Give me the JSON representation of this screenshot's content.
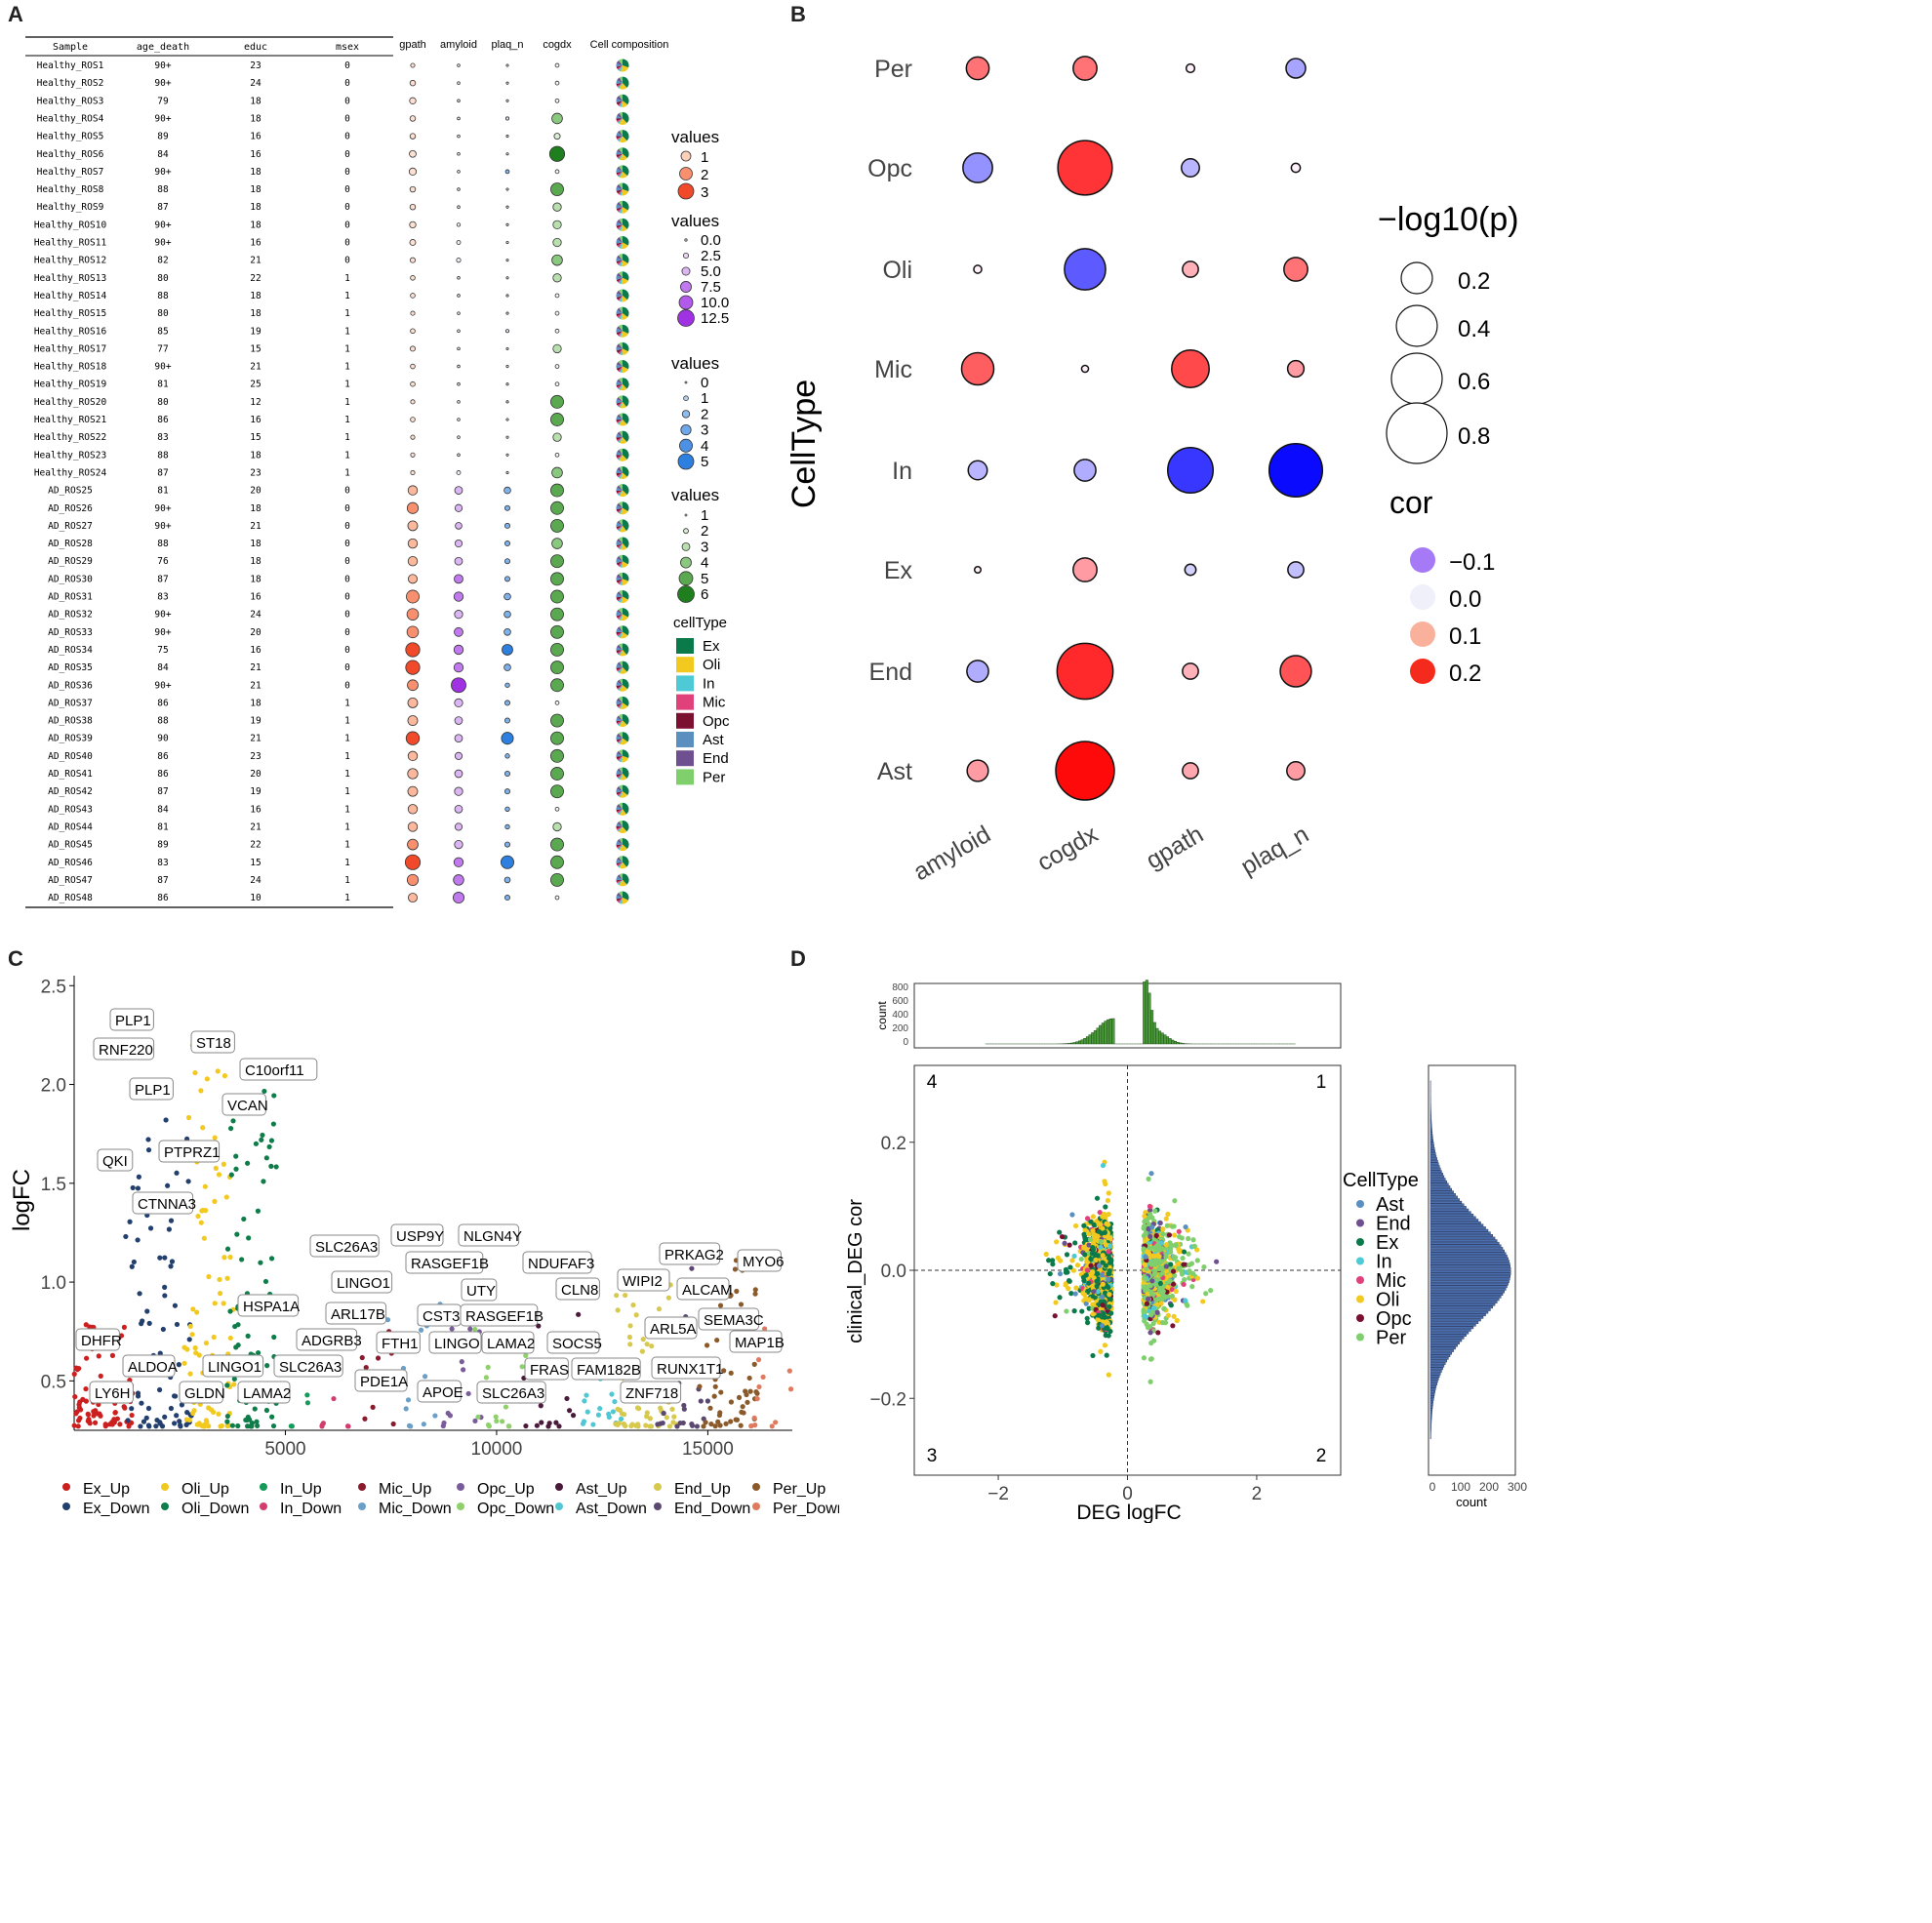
{
  "panels": {
    "A": "A",
    "B": "B",
    "C": "C",
    "D": "D"
  },
  "panelA": {
    "headers": [
      "Sample",
      "age_death",
      "educ",
      "msex"
    ],
    "bubble_headers": [
      "gpath",
      "amyloid",
      "plaq_n",
      "cogdx",
      "Cell composition"
    ],
    "rows": [
      [
        "Healthy_ROS1",
        "90+",
        "23",
        "0"
      ],
      [
        "Healthy_ROS2",
        "90+",
        "24",
        "0"
      ],
      [
        "Healthy_ROS3",
        "79",
        "18",
        "0"
      ],
      [
        "Healthy_ROS4",
        "90+",
        "18",
        "0"
      ],
      [
        "Healthy_ROS5",
        "89",
        "16",
        "0"
      ],
      [
        "Healthy_ROS6",
        "84",
        "16",
        "0"
      ],
      [
        "Healthy_ROS7",
        "90+",
        "18",
        "0"
      ],
      [
        "Healthy_ROS8",
        "88",
        "18",
        "0"
      ],
      [
        "Healthy_ROS9",
        "87",
        "18",
        "0"
      ],
      [
        "Healthy_ROS10",
        "90+",
        "18",
        "0"
      ],
      [
        "Healthy_ROS11",
        "90+",
        "16",
        "0"
      ],
      [
        "Healthy_ROS12",
        "82",
        "21",
        "0"
      ],
      [
        "Healthy_ROS13",
        "80",
        "22",
        "1"
      ],
      [
        "Healthy_ROS14",
        "88",
        "18",
        "1"
      ],
      [
        "Healthy_ROS15",
        "80",
        "18",
        "1"
      ],
      [
        "Healthy_ROS16",
        "85",
        "19",
        "1"
      ],
      [
        "Healthy_ROS17",
        "77",
        "15",
        "1"
      ],
      [
        "Healthy_ROS18",
        "90+",
        "21",
        "1"
      ],
      [
        "Healthy_ROS19",
        "81",
        "25",
        "1"
      ],
      [
        "Healthy_ROS20",
        "80",
        "12",
        "1"
      ],
      [
        "Healthy_ROS21",
        "86",
        "16",
        "1"
      ],
      [
        "Healthy_ROS22",
        "83",
        "15",
        "1"
      ],
      [
        "Healthy_ROS23",
        "88",
        "18",
        "1"
      ],
      [
        "Healthy_ROS24",
        "87",
        "23",
        "1"
      ],
      [
        "AD_ROS25",
        "81",
        "20",
        "0"
      ],
      [
        "AD_ROS26",
        "90+",
        "18",
        "0"
      ],
      [
        "AD_ROS27",
        "90+",
        "21",
        "0"
      ],
      [
        "AD_ROS28",
        "88",
        "18",
        "0"
      ],
      [
        "AD_ROS29",
        "76",
        "18",
        "0"
      ],
      [
        "AD_ROS30",
        "87",
        "18",
        "0"
      ],
      [
        "AD_ROS31",
        "83",
        "16",
        "0"
      ],
      [
        "AD_ROS32",
        "90+",
        "24",
        "0"
      ],
      [
        "AD_ROS33",
        "90+",
        "20",
        "0"
      ],
      [
        "AD_ROS34",
        "75",
        "16",
        "0"
      ],
      [
        "AD_ROS35",
        "84",
        "21",
        "0"
      ],
      [
        "AD_ROS36",
        "90+",
        "21",
        "0"
      ],
      [
        "AD_ROS37",
        "86",
        "18",
        "1"
      ],
      [
        "AD_ROS38",
        "88",
        "19",
        "1"
      ],
      [
        "AD_ROS39",
        "90",
        "21",
        "1"
      ],
      [
        "AD_ROS40",
        "86",
        "23",
        "1"
      ],
      [
        "AD_ROS41",
        "86",
        "20",
        "1"
      ],
      [
        "AD_ROS42",
        "87",
        "19",
        "1"
      ],
      [
        "AD_ROS43",
        "84",
        "16",
        "1"
      ],
      [
        "AD_ROS44",
        "81",
        "21",
        "1"
      ],
      [
        "AD_ROS45",
        "89",
        "22",
        "1"
      ],
      [
        "AD_ROS46",
        "83",
        "15",
        "1"
      ],
      [
        "AD_ROS47",
        "87",
        "24",
        "1"
      ],
      [
        "AD_ROS48",
        "86",
        "10",
        "1"
      ]
    ],
    "gpath": [
      0.3,
      0.6,
      0.8,
      0.6,
      0.6,
      0.9,
      1.0,
      0.6,
      0.6,
      0.8,
      0.7,
      0.5,
      0.4,
      0.4,
      0.3,
      0.4,
      0.5,
      0.4,
      0.4,
      0.3,
      0.4,
      0.3,
      0.3,
      0.3,
      1.5,
      1.9,
      1.6,
      1.5,
      1.5,
      1.4,
      2.3,
      2.0,
      2.0,
      2.6,
      2.6,
      1.8,
      1.6,
      1.6,
      2.4,
      1.5,
      1.7,
      1.6,
      1.5,
      1.5,
      1.8,
      2.8,
      1.9,
      1.4
    ],
    "amyloid": [
      0.3,
      0.3,
      0.3,
      0.3,
      0.3,
      0.3,
      0.3,
      0.3,
      0.3,
      1.0,
      1.5,
      1.8,
      0.3,
      0.3,
      0.3,
      0.3,
      0.3,
      0.3,
      0.3,
      0.3,
      0.3,
      0.3,
      0.3,
      1.5,
      5.0,
      4.5,
      4.0,
      4.5,
      5.0,
      6.0,
      6.5,
      5.5,
      6.0,
      6.5,
      6.5,
      11.5,
      5.5,
      5.0,
      5.0,
      4.5,
      5.0,
      5.5,
      5.0,
      4.5,
      5.5,
      6.5,
      7.5,
      8.0
    ],
    "plaq_n": [
      0.1,
      0.1,
      0.1,
      0.4,
      0.1,
      0.1,
      0.6,
      0.1,
      0.1,
      0.1,
      0.1,
      0.1,
      0.1,
      0.1,
      0.1,
      0.4,
      0.1,
      0.1,
      0.1,
      0.1,
      0.1,
      0.1,
      0.1,
      0.1,
      1.5,
      1.0,
      1.0,
      1.0,
      1.0,
      1.0,
      1.5,
      1.5,
      1.5,
      2.8,
      1.5,
      0.8,
      1.0,
      1.0,
      3.2,
      0.8,
      1.0,
      1.0,
      0.8,
      0.8,
      1.0,
      3.5,
      1.2,
      1.0
    ],
    "cogdx": [
      1,
      1,
      1,
      4,
      2,
      6,
      1,
      5,
      3,
      3,
      3,
      4,
      3,
      1,
      1,
      1,
      3,
      1,
      1,
      5,
      5,
      3,
      1,
      4,
      5,
      5,
      5,
      4,
      5,
      5,
      5,
      5,
      5,
      5,
      5,
      5,
      1,
      5,
      5,
      5,
      5,
      5,
      1,
      3,
      5,
      5,
      5,
      1
    ],
    "legend1": {
      "title": "values",
      "labels": [
        "1",
        "2",
        "3"
      ]
    },
    "legend2": {
      "title": "values",
      "labels": [
        "0.0",
        "2.5",
        "5.0",
        "7.5",
        "10.0",
        "12.5"
      ]
    },
    "legend3": {
      "title": "values",
      "labels": [
        "0",
        "1",
        "2",
        "3",
        "4",
        "5"
      ]
    },
    "legend4": {
      "title": "values",
      "labels": [
        "1",
        "2",
        "3",
        "4",
        "5",
        "6"
      ]
    },
    "celltype_legend": {
      "title": "cellType",
      "items": [
        {
          "label": "Ex",
          "color": "#0b7a4b"
        },
        {
          "label": "Oli",
          "color": "#f2c91e"
        },
        {
          "label": "In",
          "color": "#4ec9d6"
        },
        {
          "label": "Mic",
          "color": "#e0417a"
        },
        {
          "label": "Opc",
          "color": "#7b1030"
        },
        {
          "label": "Ast",
          "color": "#5a8fbf"
        },
        {
          "label": "End",
          "color": "#6e4f8f"
        },
        {
          "label": "Per",
          "color": "#7fcf6c"
        }
      ]
    }
  },
  "panelB": {
    "ylabel": "CellType",
    "rows": [
      "Per",
      "Opc",
      "Oli",
      "Mic",
      "In",
      "Ex",
      "End",
      "Ast"
    ],
    "cols": [
      "amyloid",
      "cogdx",
      "gpath",
      "plaq_n"
    ],
    "cor": [
      [
        0.12,
        0.12,
        0.0,
        -0.08
      ],
      [
        -0.1,
        0.18,
        -0.06,
        0.0
      ],
      [
        0.0,
        -0.16,
        0.06,
        0.12
      ],
      [
        0.14,
        0.0,
        0.16,
        0.08
      ],
      [
        -0.06,
        -0.07,
        -0.2,
        -0.25
      ],
      [
        0.0,
        0.08,
        -0.03,
        -0.05
      ],
      [
        -0.07,
        0.19,
        0.06,
        0.15
      ],
      [
        0.08,
        0.22,
        0.07,
        0.08
      ]
    ],
    "neglogp": [
      [
        0.32,
        0.34,
        0.05,
        0.26
      ],
      [
        0.45,
        0.92,
        0.23,
        0.06
      ],
      [
        0.04,
        0.67,
        0.19,
        0.34
      ],
      [
        0.5,
        0.02,
        0.6,
        0.2
      ],
      [
        0.25,
        0.3,
        0.75,
        0.9
      ],
      [
        0.01,
        0.34,
        0.1,
        0.19
      ],
      [
        0.3,
        0.95,
        0.19,
        0.48
      ],
      [
        0.29,
        1.0,
        0.19,
        0.23
      ]
    ],
    "size_legend": {
      "title": "−log10(p)",
      "labels": [
        "0.2",
        "0.4",
        "0.6",
        "0.8"
      ]
    },
    "color_legend": {
      "title": "cor",
      "labels": [
        "−0.1",
        "0.0",
        "0.1",
        "0.2"
      ]
    }
  },
  "panelC": {
    "ylabel": "logFC",
    "yticks": [
      "0.5",
      "1.0",
      "1.5",
      "2.0",
      "2.5"
    ],
    "xticks": [
      "5000",
      "10000",
      "15000"
    ],
    "labels": [
      "PLP1",
      "ST18",
      "RNF220",
      "C10orf11",
      "PLP1",
      "VCAN",
      "QKI",
      "PTPRZ1",
      "CTNNA3",
      "SLC26A3",
      "USP9Y",
      "NLGN4Y",
      "LINGO1",
      "RASGEF1B",
      "NDUFAF3",
      "PRKAG2",
      "MYO6",
      "UTY",
      "CLN8",
      "WIPI2",
      "ALCAM",
      "HSPA1A",
      "ARL17B",
      "CST3",
      "RASGEF1B",
      "SEMA3C",
      "ADGRB3",
      "FTH1",
      "LINGO",
      "LAMA2",
      "SOCS5",
      "ARL5A",
      "MAP1B",
      "DHFR",
      "LINGO1",
      "SLC26A3",
      "PDE1A",
      "APOE",
      "FRAS",
      "FAM182B",
      "RUNX1T1",
      "ALDOA",
      "GLDN",
      "LAMA2",
      "SLC26A3",
      "ZNF718",
      "LY6H"
    ],
    "legend": [
      {
        "label": "Ex_Up",
        "color": "#cc1f1f"
      },
      {
        "label": "Ex_Down",
        "color": "#223f6e"
      },
      {
        "label": "Oli_Up",
        "color": "#f2c91e"
      },
      {
        "label": "Oli_Down",
        "color": "#0e7d49"
      },
      {
        "label": "In_Up",
        "color": "#169a5a"
      },
      {
        "label": "In_Down",
        "color": "#d23d6c"
      },
      {
        "label": "Mic_Up",
        "color": "#8a1a2c"
      },
      {
        "label": "Mic_Down",
        "color": "#6a9fc8"
      },
      {
        "label": "Opc_Up",
        "color": "#7a5c9a"
      },
      {
        "label": "Opc_Down",
        "color": "#8fd06c"
      },
      {
        "label": "Ast_Up",
        "color": "#4a1a3a"
      },
      {
        "label": "Ast_Down",
        "color": "#52c7d4"
      },
      {
        "label": "End_Up",
        "color": "#d7c94e"
      },
      {
        "label": "End_Down",
        "color": "#5a4870"
      },
      {
        "label": "Per_Up",
        "color": "#8a5a2a"
      },
      {
        "label": "Per_Down",
        "color": "#e07a5f"
      }
    ]
  },
  "panelD": {
    "xlabel": "DEG logFC",
    "ylabel": "clinical_DEG cor",
    "xticks": [
      "−2",
      "0",
      "2"
    ],
    "yticks": [
      "0.2",
      "0.0",
      "−0.2"
    ],
    "quadrants": [
      "4",
      "1",
      "3",
      "2"
    ],
    "top_hist": {
      "ylabel": "count",
      "yticks": [
        "800",
        "600",
        "400",
        "200",
        "0"
      ]
    },
    "right_hist": {
      "xlabel": "count",
      "xticks": [
        "0",
        "100",
        "200",
        "300"
      ]
    },
    "legend": {
      "title": "CellType",
      "items": [
        {
          "label": "Ast",
          "color": "#5a8fbf"
        },
        {
          "label": "End",
          "color": "#6e4f8f"
        },
        {
          "label": "Ex",
          "color": "#0b7a4b"
        },
        {
          "label": "In",
          "color": "#4ec9d6"
        },
        {
          "label": "Mic",
          "color": "#e0417a"
        },
        {
          "label": "Oli",
          "color": "#f2c91e"
        },
        {
          "label": "Opc",
          "color": "#7b1030"
        },
        {
          "label": "Per",
          "color": "#7fcf6c"
        }
      ]
    }
  }
}
